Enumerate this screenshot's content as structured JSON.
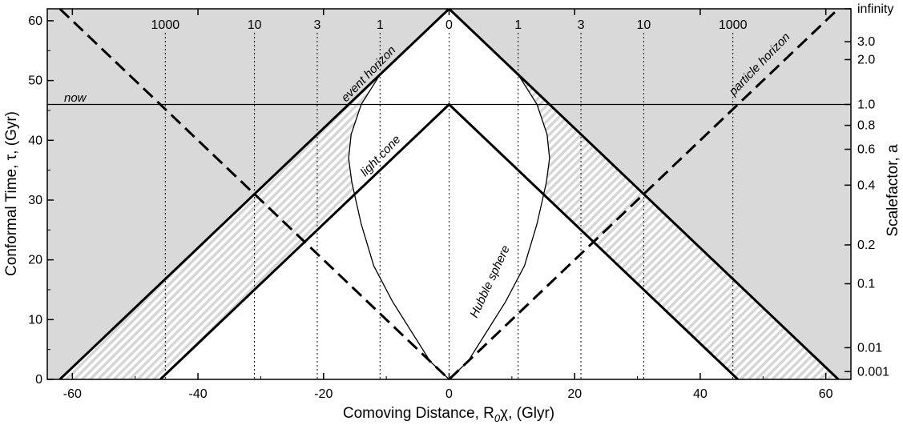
{
  "chart_data": {
    "type": "line",
    "xlabel": "Comoving Distance, R",
    "xlabel_sub": "0",
    "xlabel_rest": "χ, (Glyr)",
    "ylabel": "Conformal Time, τ, (Gyr)",
    "ylabel_right": "Scalefactor, a",
    "xlim": [
      -64,
      64
    ],
    "ylim": [
      0,
      62
    ],
    "x_ticks": [
      -60,
      -40,
      -20,
      0,
      20,
      40,
      60
    ],
    "y_ticks": [
      0,
      10,
      20,
      30,
      40,
      50,
      60
    ],
    "scalefactor_ticks": [
      {
        "label": "infinity",
        "tau": 62
      },
      {
        "label": "3.0",
        "tau": 56.5
      },
      {
        "label": "2.0",
        "tau": 53.5
      },
      {
        "label": "1.0",
        "tau": 46
      },
      {
        "label": "0.8",
        "tau": 42.5
      },
      {
        "label": "0.6",
        "tau": 38.5
      },
      {
        "label": "0.4",
        "tau": 32.5
      },
      {
        "label": "0.2",
        "tau": 22.5
      },
      {
        "label": "0.1",
        "tau": 16
      },
      {
        "label": "0.01",
        "tau": 5.3
      },
      {
        "label": "0.001",
        "tau": 1.3
      }
    ],
    "redshift_lines": [
      {
        "label": "1000",
        "x": -45.2
      },
      {
        "label": "10",
        "x": -31
      },
      {
        "label": "3",
        "x": -21
      },
      {
        "label": "1",
        "x": -11
      },
      {
        "label": "0",
        "x": 0
      },
      {
        "label": "1",
        "x": 11
      },
      {
        "label": "3",
        "x": 21
      },
      {
        "label": "10",
        "x": 31
      },
      {
        "label": "1000",
        "x": 45.2
      }
    ],
    "now_tau": 46,
    "series": [
      {
        "name": "event horizon",
        "points": [
          [
            -62,
            0
          ],
          [
            0,
            62
          ],
          [
            62,
            0
          ]
        ]
      },
      {
        "name": "light cone",
        "points": [
          [
            -46,
            0
          ],
          [
            0,
            46
          ],
          [
            46,
            0
          ]
        ]
      },
      {
        "name": "particle horizon",
        "points": [
          [
            -62,
            62
          ],
          [
            0,
            0
          ],
          [
            62,
            62
          ]
        ]
      },
      {
        "name": "Hubble sphere",
        "points": [
          [
            0,
            0
          ],
          [
            3,
            3
          ],
          [
            6,
            8
          ],
          [
            9,
            13
          ],
          [
            12,
            19
          ],
          [
            14,
            26
          ],
          [
            15.5,
            33
          ],
          [
            16,
            37
          ],
          [
            15.6,
            41
          ],
          [
            14,
            46
          ],
          [
            11,
            51
          ],
          [
            7,
            55
          ],
          [
            3.5,
            58.5
          ],
          [
            0,
            62
          ]
        ]
      }
    ],
    "annotations": {
      "now": "now",
      "event_horizon": "event horizon",
      "light_cone": "light cone",
      "particle_horizon": "particle horizon",
      "hubble_sphere": "Hubble sphere"
    },
    "colors": {
      "outside": "#d9d9d9",
      "hatch": "#c8c8c8",
      "inside": "#ffffff",
      "ink": "#000000"
    }
  }
}
